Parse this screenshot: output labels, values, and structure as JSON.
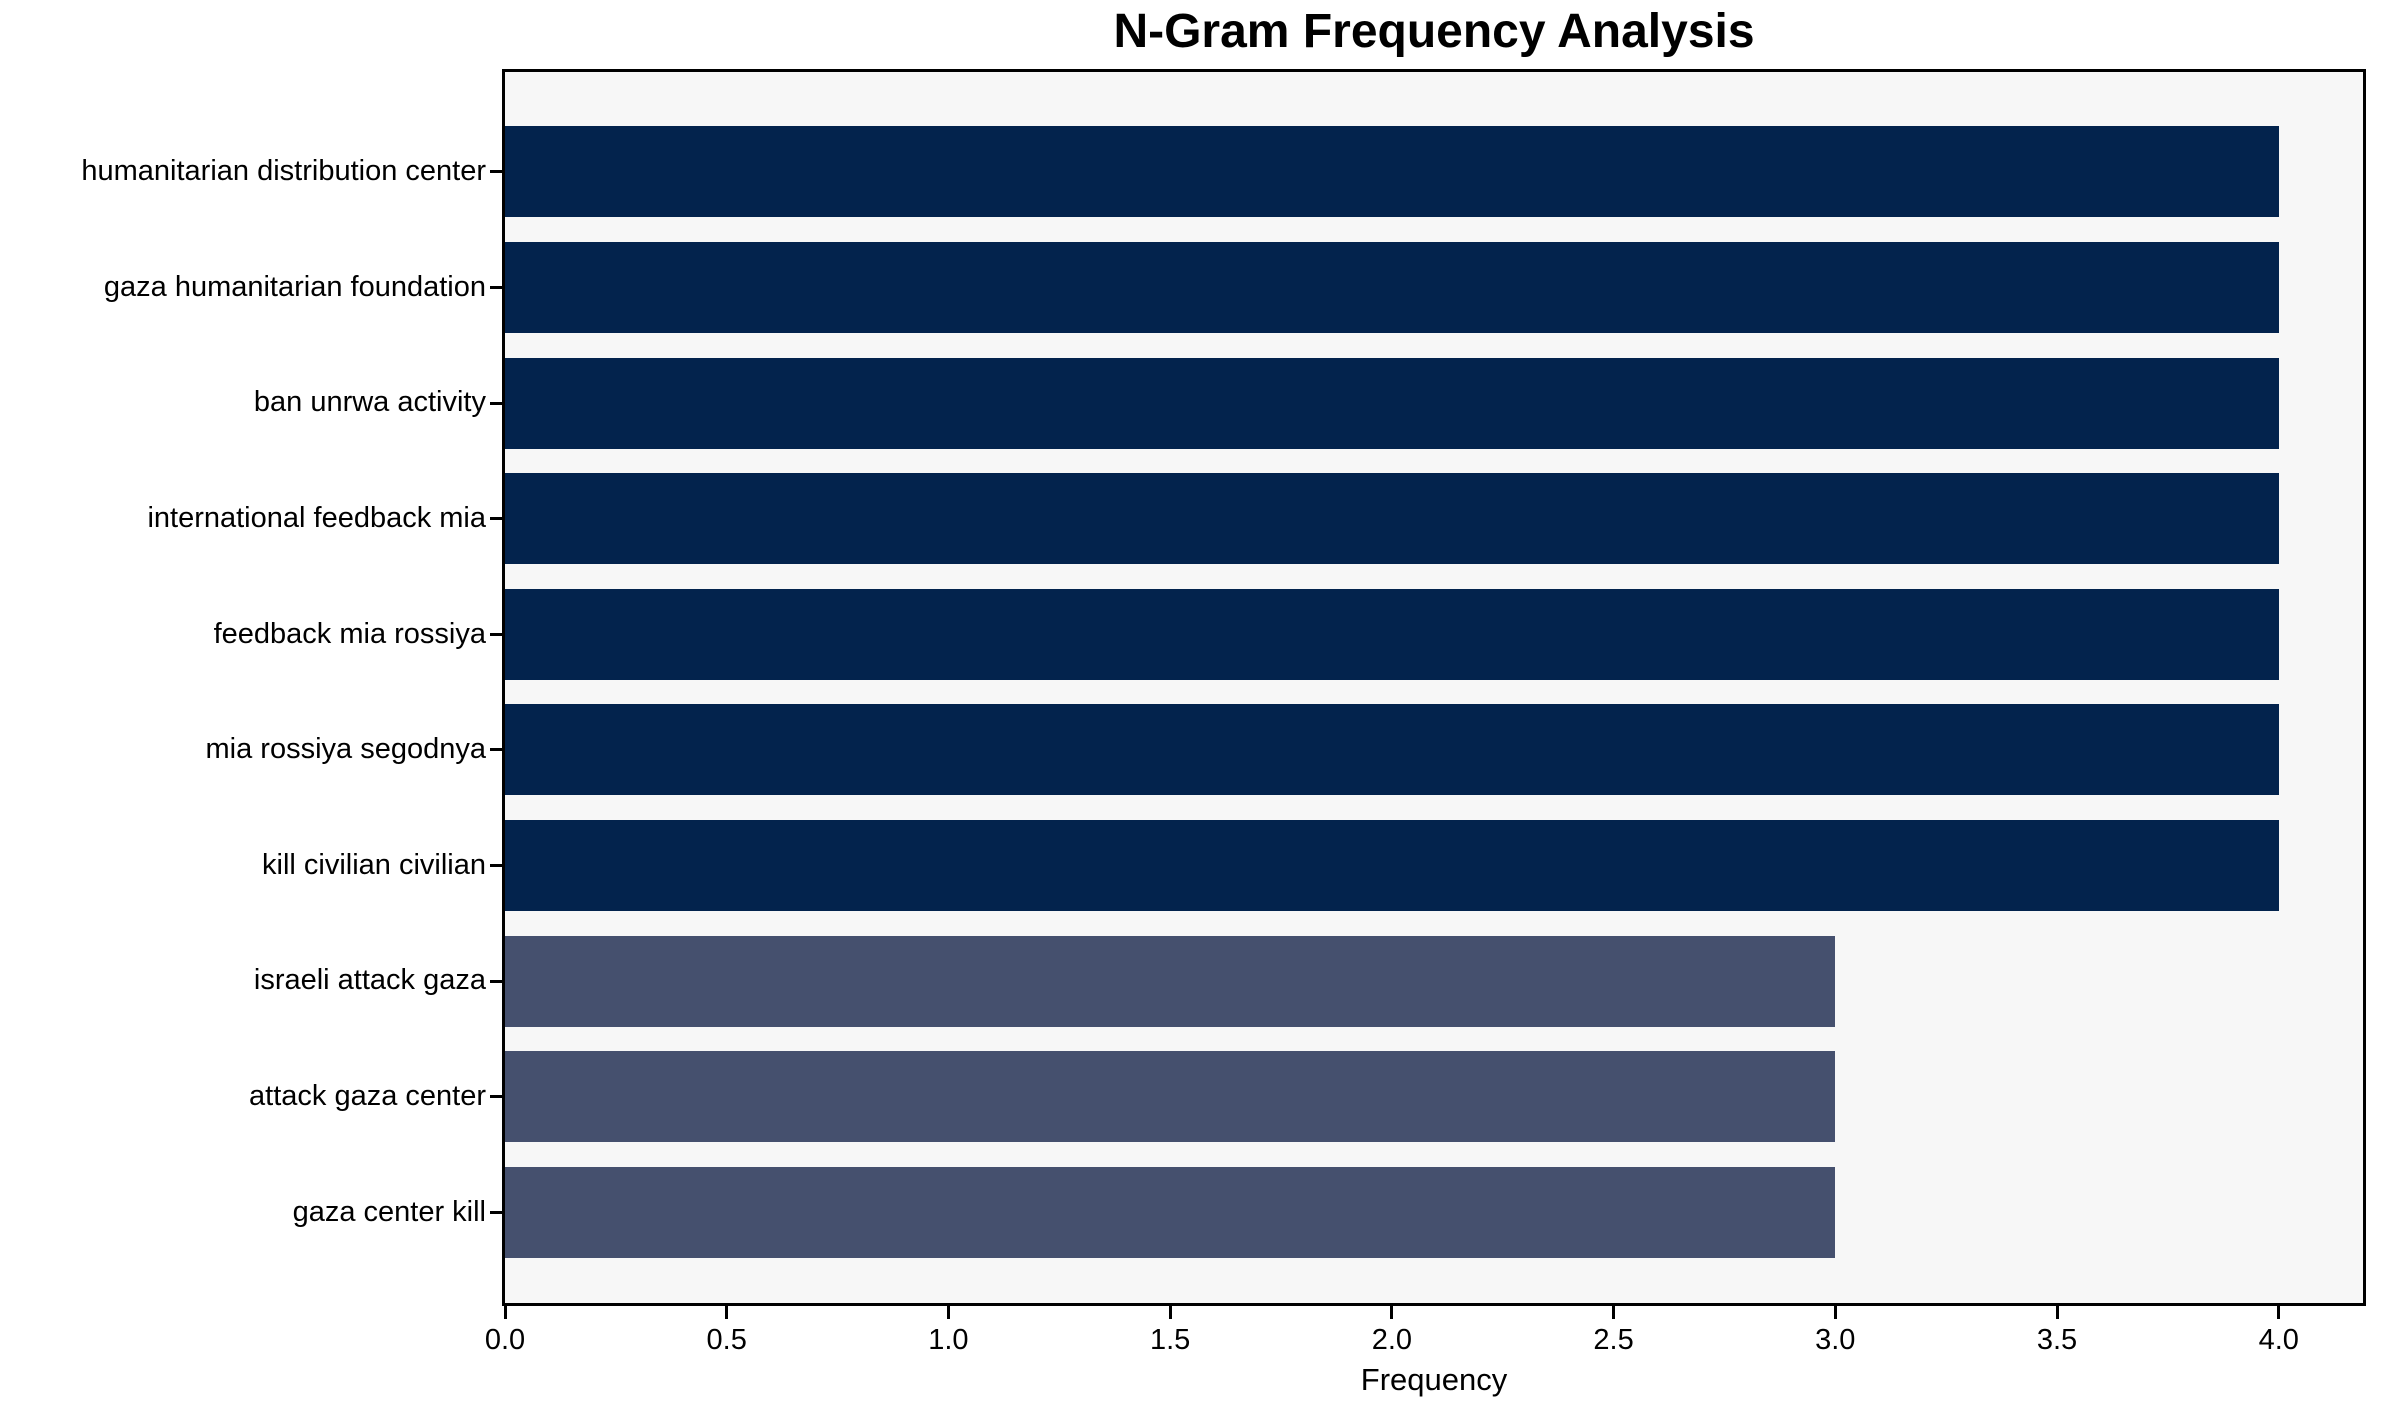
{
  "chart_data": {
    "type": "bar",
    "orientation": "horizontal",
    "title": "N-Gram Frequency Analysis",
    "xlabel": "Frequency",
    "ylabel": "",
    "categories": [
      "humanitarian distribution center",
      "gaza humanitarian foundation",
      "ban unrwa activity",
      "international feedback mia",
      "feedback mia rossiya",
      "mia rossiya segodnya",
      "kill civilian civilian",
      "israeli attack gaza",
      "attack gaza center",
      "gaza center kill"
    ],
    "values": [
      4,
      4,
      4,
      4,
      4,
      4,
      4,
      3,
      3,
      3
    ],
    "bar_colors": [
      "#03234d",
      "#03234d",
      "#03234d",
      "#03234d",
      "#03234d",
      "#03234d",
      "#03234d",
      "#45506e",
      "#45506e",
      "#45506e"
    ],
    "xticks": [
      "0.0",
      "0.5",
      "1.0",
      "1.5",
      "2.0",
      "2.5",
      "3.0",
      "3.5",
      "4.0"
    ],
    "xtick_values": [
      0,
      0.5,
      1,
      1.5,
      2,
      2.5,
      3,
      3.5,
      4
    ],
    "xlim": [
      0,
      4.19
    ],
    "grid": false,
    "legend": null,
    "plot_background": "#f7f7f7",
    "figure_background": "#ffffff",
    "spine_color": "#000000"
  }
}
